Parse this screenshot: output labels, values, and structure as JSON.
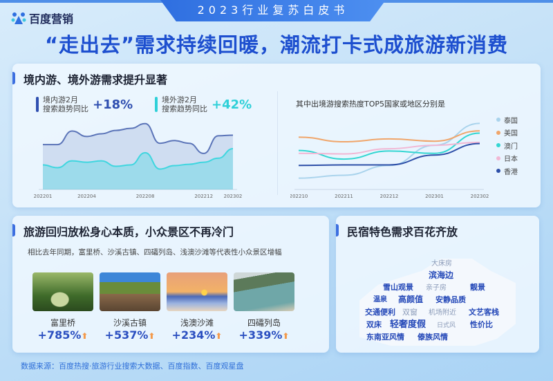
{
  "banner": "2023行业复苏白皮书",
  "logo": {
    "text": "百度营销",
    "icon": "baidu-paw-icon"
  },
  "title": "“走出去”需求持续回暖，潮流打卡式成旅游新消费",
  "panel1": {
    "title": "境内游、境外游需求提升显著",
    "domestic": {
      "label1": "境内游2月",
      "label2": "搜索趋势同比",
      "value": "+18%",
      "color": "#2f4fb0"
    },
    "outbound": {
      "label1": "境外游2月",
      "label2": "搜索趋势同比",
      "value": "+42%",
      "color": "#2fd0d8"
    }
  },
  "chart_data": [
    {
      "type": "area",
      "x": [
        "202201",
        "202202",
        "202203",
        "202204",
        "202205",
        "202206",
        "202207",
        "202208",
        "202209",
        "202210",
        "202211",
        "202212",
        "202301",
        "202302"
      ],
      "xticks": [
        "202201",
        "202204",
        "202208",
        "202212",
        "202302"
      ],
      "series": [
        {
          "values": [
            58,
            58,
            78,
            70,
            74,
            79,
            82,
            89,
            60,
            64,
            60,
            45,
            71,
            72
          ],
          "color": "#5b74b8"
        },
        {
          "values": [
            28,
            24,
            34,
            32,
            34,
            26,
            28,
            46,
            22,
            27,
            29,
            32,
            38,
            52
          ],
          "color": "#3fd6df"
        }
      ],
      "ylim": [
        0,
        100
      ],
      "grid": false
    },
    {
      "type": "line",
      "title": "其中出境游搜索热度TOP5国家或地区分别是",
      "x": [
        "202210",
        "202211",
        "202212",
        "202301",
        "202302"
      ],
      "series": [
        {
          "name": "泰国",
          "values": [
            30,
            35,
            52,
            87,
            125
          ],
          "color": "#a9d3ec"
        },
        {
          "name": "美国",
          "values": [
            101,
            93,
            98,
            94,
            112
          ],
          "color": "#f0a56a"
        },
        {
          "name": "澳门",
          "values": [
            78,
            63,
            77,
            73,
            108
          ],
          "color": "#34d6d2"
        },
        {
          "name": "日本",
          "values": [
            73,
            72,
            81,
            87,
            92
          ],
          "color": "#f1b7d4"
        },
        {
          "name": "香港",
          "values": [
            52,
            53,
            53,
            70,
            90
          ],
          "color": "#2d4fa8"
        }
      ],
      "ylim": [
        20,
        135
      ],
      "legend": "right",
      "grid": false
    }
  ],
  "panel2": {
    "title": "旅游回归放松身心本质，小众景区不再冷门",
    "subtitle": "相比去年同期，富里桥、沙溪古镇、四礵列岛、浅澳沙滩等代表性小众景区增幅",
    "spots": [
      {
        "name": "富里桥",
        "value": "+785%"
      },
      {
        "name": "沙溪古镇",
        "value": "+537%"
      },
      {
        "name": "浅澳沙滩",
        "value": "+234%"
      },
      {
        "name": "四礵列岛",
        "value": "+339%"
      }
    ]
  },
  "panel3": {
    "title": "民宿特色需求百花齐放",
    "words": [
      "滨海边",
      "雪山观景",
      "靓景",
      "温泉",
      "交通便利",
      "双窗",
      "高颜值",
      "安静品质",
      "文艺客栈",
      "双床",
      "轻奢度假",
      "东南亚风情",
      "傣族风情",
      "性价比",
      "亲子房",
      "机场附近",
      "大床房",
      "日式风"
    ]
  },
  "footer": "数据来源：百度热搜·旅游行业搜索大数据、百度指数、百度观星盘"
}
